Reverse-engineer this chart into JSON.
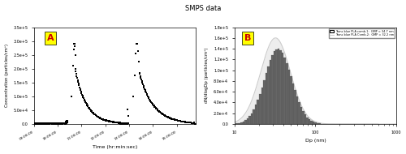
{
  "title": "SMPS data",
  "panel_A": {
    "label": "A",
    "xlabel": "Time (hr:min:sec)",
    "ylabel": "Concentration (particles/cm³)",
    "ylim": [
      0,
      350000.0
    ],
    "yticks": [
      0,
      50000.0,
      100000.0,
      150000.0,
      200000.0,
      250000.0,
      300000.0,
      350000.0
    ],
    "ytick_labels": [
      "0.0",
      "5.0e+4",
      "1.0e+5",
      "1.5e+5",
      "2.0e+5",
      "2.5e+5",
      "3.0e+5",
      "3.5e+5"
    ],
    "xlim_hours": [
      9.0,
      15.8
    ],
    "xtick_hours": [
      9,
      10,
      11,
      12,
      13,
      14,
      15
    ],
    "xtick_labels": [
      "09:00:00",
      "10:00:00",
      "11:00:00",
      "12:00:00",
      "13:00:00",
      "14:00:00",
      "15:00:00"
    ],
    "bg_color": "#ffffff",
    "scatter_color": "#000000",
    "scatter_size": 3
  },
  "panel_B": {
    "label": "B",
    "xlabel": "Dp (nm)",
    "ylabel": "dN/dlogDp (particles/cm³)",
    "ylim": [
      0,
      180000.0
    ],
    "yticks": [
      0,
      20000.0,
      40000.0,
      60000.0,
      80000.0,
      100000.0,
      120000.0,
      140000.0,
      160000.0,
      180000.0
    ],
    "ytick_labels": [
      "0.0",
      "2.0e+4",
      "4.0e+4",
      "6.0e+4",
      "8.0e+4",
      "1.0e+5",
      "1.2e+5",
      "1.4e+5",
      "1.6e+5",
      "1.8e+5"
    ],
    "xlim": [
      10,
      1000
    ],
    "bar_color": "#666666",
    "bar_edge_color": "#444444",
    "bg_color": "#ffffff",
    "legend_labels": [
      "Trans blue PLA comb-1:  GMP = 34.7 nm",
      "Trans blue PLA Comb-2:  GMP = 32.2 nm"
    ],
    "curve1_color": "#000000",
    "curve2_color": "#cccccc",
    "curve2_fill_color": "#dddddd",
    "gmp1": 34.7,
    "gmp2": 32.2,
    "sigma1": 0.38,
    "sigma2": 0.42,
    "peak1": 140000,
    "peak2": 160000,
    "n_bars": 70
  },
  "label_bg_color": "#ffff00",
  "label_text_color": "#cc0000",
  "label_fontsize": 8
}
